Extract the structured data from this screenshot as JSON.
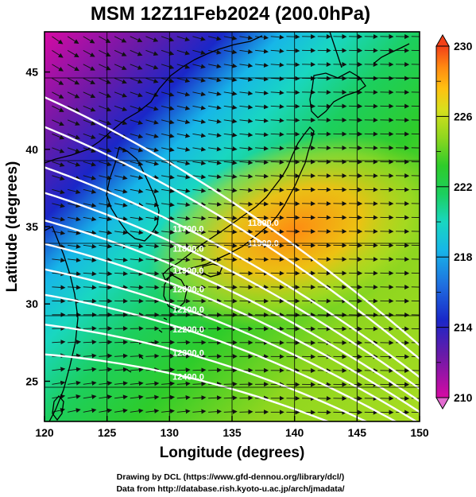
{
  "title": "MSM 12Z11Feb2024 (200.0hPa)",
  "x_axis": {
    "label": "Longitude (degrees)",
    "range": [
      120,
      150
    ],
    "ticks": [
      120,
      125,
      130,
      135,
      140,
      145,
      150
    ]
  },
  "y_axis": {
    "label": "Latitude  (degrees)",
    "range": [
      22.4,
      47.6
    ],
    "ticks": [
      25,
      30,
      35,
      40,
      45
    ]
  },
  "colorbar": {
    "range": [
      210,
      230
    ],
    "labels": [
      "230",
      "226",
      "222",
      "218",
      "214",
      "210"
    ],
    "colors": [
      "#d60aa3",
      "#6a1aa8",
      "#1a27c8",
      "#1f6fe0",
      "#17b6e8",
      "#19d7c0",
      "#1ccf5e",
      "#2ecc2a",
      "#8fd61f",
      "#d8df1d",
      "#ffc010",
      "#ff8a12",
      "#f24018"
    ]
  },
  "contours": [
    {
      "label": "11800.0",
      "lat135": 36.6
    },
    {
      "label": "11900.0",
      "lat135": 35.2
    },
    {
      "label": "11700.0",
      "lat135": 33.3
    },
    {
      "label": "11800.0",
      "lat135": 32.1
    },
    {
      "label": "11900.0",
      "lat135": 30.8
    },
    {
      "label": "12000.0",
      "lat135": 29.7
    },
    {
      "label": "12100.0",
      "lat135": 28.5
    },
    {
      "label": "12200.0",
      "lat135": 27.3
    },
    {
      "label": "12300.0",
      "lat135": 25.9
    },
    {
      "label": "12400.0",
      "lat135": 24.5
    }
  ],
  "credits": [
    "Drawing by DCL (https://www.gfd-dennou.org/library/dcl/)",
    "Data from http://database.rish.kyoto-u.ac.jp/arch/jmadata/"
  ]
}
